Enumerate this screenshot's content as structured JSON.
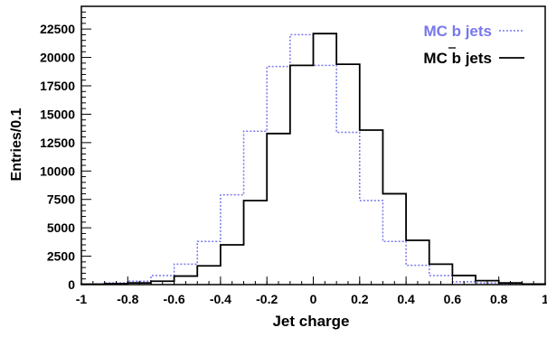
{
  "chart_data": {
    "type": "step",
    "xlabel": "Jet charge",
    "ylabel": "Entries/0.1",
    "xlim": [
      -1,
      1
    ],
    "ylim": [
      0,
      24500
    ],
    "grid": false,
    "legend_placement": "top-right",
    "x_ticks": [
      -1,
      -0.8,
      -0.6,
      -0.4,
      -0.2,
      0,
      0.2,
      0.4,
      0.6,
      0.8,
      1
    ],
    "x_tick_labels": [
      "-1",
      "-0.8",
      "-0.6",
      "-0.4",
      "-0.2",
      "0",
      "0.2",
      "0.4",
      "0.6",
      "0.8",
      "1"
    ],
    "y_ticks": [
      0,
      2500,
      5000,
      7500,
      10000,
      12500,
      15000,
      17500,
      20000,
      22500
    ],
    "y_tick_labels": [
      "0",
      "2500",
      "5000",
      "7500",
      "10000",
      "12500",
      "15000",
      "17500",
      "20000",
      "22500"
    ],
    "bin_edges": [
      -1,
      -0.9,
      -0.8,
      -0.7,
      -0.6,
      -0.5,
      -0.4,
      -0.3,
      -0.2,
      -0.1,
      0,
      0.1,
      0.2,
      0.3,
      0.4,
      0.5,
      0.6,
      0.7,
      0.8,
      0.9,
      1
    ],
    "series": [
      {
        "name": "MC b jets",
        "color": "#7777ee",
        "style": "dotted",
        "values": [
          50,
          150,
          300,
          800,
          1800,
          3800,
          7900,
          13500,
          19200,
          22000,
          19300,
          13400,
          7400,
          3800,
          1700,
          800,
          250,
          150,
          80,
          40
        ]
      },
      {
        "name_main": "MC b",
        "name_bar": "b",
        "name_rest": " jets",
        "color": "#000000",
        "style": "solid",
        "values": [
          40,
          80,
          150,
          300,
          750,
          1650,
          3500,
          7400,
          13300,
          19300,
          22100,
          19400,
          13600,
          8000,
          3900,
          1800,
          800,
          350,
          150,
          50
        ]
      }
    ]
  }
}
